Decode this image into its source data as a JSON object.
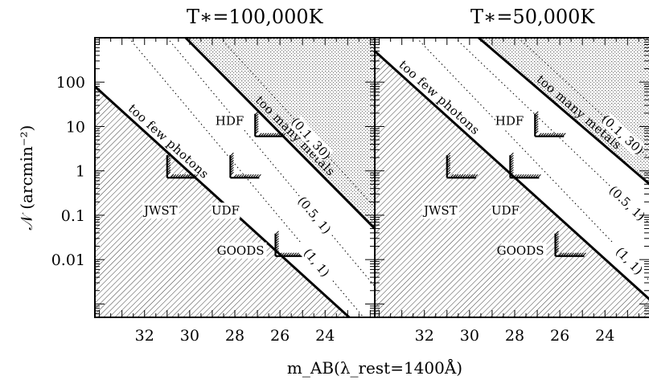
{
  "chart_data": [
    {
      "type": "line",
      "title": "T∗=100,000K",
      "xlabel": "m_AB(λ_rest=1400Å)",
      "ylabel": "𝒩 (arcmin⁻²)",
      "xlim": [
        34.2,
        21.8
      ],
      "ylim": [
        0.0005,
        1000
      ],
      "y_scale": "log",
      "x_ticks": [
        "32",
        "30",
        "28",
        "26",
        "24"
      ],
      "y_ticks": [
        "100",
        "10",
        "1",
        "0.1",
        "0.01"
      ],
      "boundaries": [
        {
          "name": "too few photons",
          "style": "solid",
          "x": [
            34.2,
            21.8
          ],
          "y": [
            80,
            0.00015
          ]
        },
        {
          "name": "too many metals",
          "style": "solid",
          "x": [
            30.18,
            21.8
          ],
          "y": [
            1000,
            0.05
          ]
        }
      ],
      "contours": [
        {
          "label": "(0.1, 30)",
          "style": "dotted",
          "x": [
            28.65,
            21.8
          ],
          "y": [
            1000,
            0.15
          ]
        },
        {
          "label": "(0.5, 1)",
          "style": "dotted",
          "x": [
            31.0,
            21.8
          ],
          "y": [
            1000,
            0.0025
          ]
        },
        {
          "label": "(1, 1)",
          "style": "dotted",
          "x": [
            32.7,
            21.8
          ],
          "y": [
            1000,
            0.00025
          ]
        }
      ],
      "region_labels": [
        "too few photons",
        "too many metals"
      ],
      "surveys": [
        {
          "name": "HDF",
          "x": 27.1,
          "y": 6
        },
        {
          "name": "JWST",
          "x": 31.0,
          "y": 0.7
        },
        {
          "name": "UDF",
          "x": 28.2,
          "y": 0.7
        },
        {
          "name": "GOODS",
          "x": 26.2,
          "y": 0.012
        }
      ]
    },
    {
      "type": "line",
      "title": "T∗=50,000K",
      "xlabel": "m_AB(λ_rest=1400Å)",
      "ylabel": "",
      "xlim": [
        34.2,
        21.8
      ],
      "ylim": [
        0.0005,
        1000
      ],
      "y_scale": "log",
      "x_ticks": [
        "32",
        "30",
        "28",
        "26",
        "24"
      ],
      "y_ticks": [
        "100",
        "10",
        "1",
        "0.1",
        "0.01"
      ],
      "boundaries": [
        {
          "name": "too few photons",
          "style": "solid",
          "x": [
            34.2,
            21.8
          ],
          "y": [
            500,
            0.001
          ]
        },
        {
          "name": "too many metals",
          "style": "solid",
          "x": [
            29.6,
            21.8
          ],
          "y": [
            1000,
            0.4
          ]
        }
      ],
      "contours": [
        {
          "label": "(0.1, 30)",
          "style": "dotted",
          "x": [
            27.85,
            21.8
          ],
          "y": [
            1000,
            1.5
          ]
        },
        {
          "label": "(0.5, 1)",
          "style": "dotted",
          "x": [
            30.65,
            21.8
          ],
          "y": [
            1000,
            0.05
          ]
        },
        {
          "label": "(1, 1)",
          "style": "dotted",
          "x": [
            32.35,
            21.8
          ],
          "y": [
            1000,
            0.0025
          ]
        }
      ],
      "region_labels": [
        "too few photons",
        "too many metals"
      ],
      "surveys": [
        {
          "name": "HDF",
          "x": 27.1,
          "y": 6
        },
        {
          "name": "JWST",
          "x": 31.0,
          "y": 0.7
        },
        {
          "name": "UDF",
          "x": 28.2,
          "y": 0.7
        },
        {
          "name": "GOODS",
          "x": 26.2,
          "y": 0.012
        }
      ]
    }
  ]
}
